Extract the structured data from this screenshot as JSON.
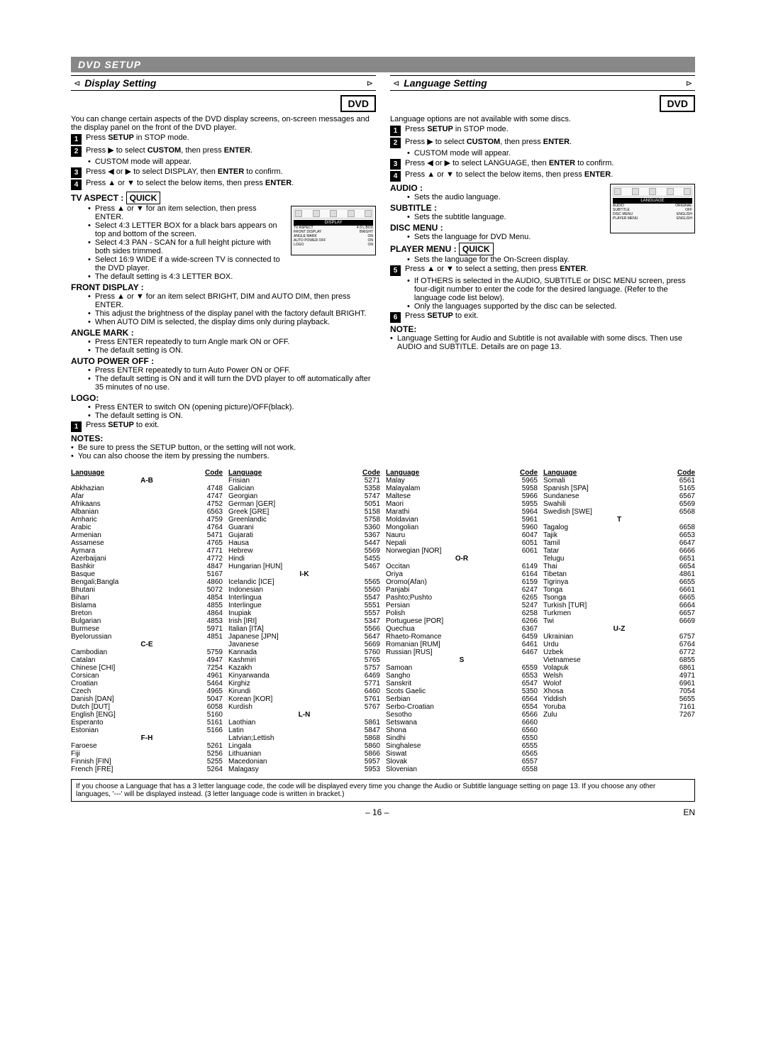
{
  "section_title": "DVD SETUP",
  "display": {
    "title": "Display Setting",
    "badge": "DVD",
    "intro": "You can change certain aspects of the DVD display screens, on-screen messages and the display panel on the front of the DVD player.",
    "s1": "Press ",
    "s1b": "SETUP",
    "s1c": " in STOP mode.",
    "s2a": "Press ",
    "s2b": " to select ",
    "s2c": "CUSTOM",
    "s2d": ", then press ",
    "s2e": "ENTER",
    "s2f": ".",
    "s2_bullet": "CUSTOM mode will appear.",
    "s3a": "Press ",
    "s3b": " or ",
    "s3c": " to select DISPLAY, then ",
    "s3d": "ENTER",
    "s3e": " to confirm.",
    "s4a": "Press ",
    "s4b": " or ",
    "s4c": " to select the below items, then press ",
    "s4d": "ENTER",
    "s4e": ".",
    "tv_aspect_h": "TV ASPECT : ",
    "quick": "QUICK",
    "tva_b1": "Press ▲ or ▼ for an item selection, then press ENTER.",
    "tva_b2": "Select 4:3 LETTER BOX for a black bars appears on top and bottom of the screen.",
    "tva_b3": "Select 4:3 PAN - SCAN for a full height picture with both sides trimmed.",
    "tva_b4": "Select 16:9 WIDE if a wide-screen TV is connected to the DVD player.",
    "tva_b5": "The default setting is 4:3 LETTER BOX.",
    "front_h": "FRONT DISPLAY :",
    "fd_b1": "Press ▲ or ▼ for an item select BRIGHT, DIM and AUTO DIM, then press ENTER.",
    "fd_b2": "This adjust the brightness of the display panel with the factory default BRIGHT.",
    "fd_b3": "When AUTO DIM is selected, the display dims only during playback.",
    "angle_h": "ANGLE MARK :",
    "am_b1": "Press ENTER repeatedly to turn Angle mark ON or OFF.",
    "am_b2": "The default setting is ON.",
    "apo_h": "AUTO POWER OFF :",
    "apo_b1": "Press ENTER repeatedly to turn Auto Power ON or OFF.",
    "apo_b2": "The default setting is ON and it will turn the DVD player to off automatically after 35 minutes of no use.",
    "logo_h": "LOGO:",
    "logo_b1": "Press ENTER to switch ON (opening picture)/OFF(black).",
    "logo_b2": "The default setting is ON.",
    "s_exit_a": "Press ",
    "s_exit_b": "SETUP",
    "s_exit_c": " to exit.",
    "notes_h": "NOTES:",
    "notes_b1": "Be sure to press the SETUP button, or the setting will not work.",
    "notes_b2": "You can also choose the item by pressing the numbers.",
    "diag": {
      "head_label": "DISPLAY",
      "rows": [
        [
          "TV ASPECT",
          "4:3 L.BOX"
        ],
        [
          "FRONT DISPLAY",
          "BRIGHT"
        ],
        [
          "ANGLE MARK",
          "ON"
        ],
        [
          "AUTO POWER OFF",
          "ON"
        ],
        [
          "LOGO",
          "ON"
        ]
      ]
    }
  },
  "language": {
    "title": "Language Setting",
    "badge": "DVD",
    "intro": "Language options are not available with some discs.",
    "s1a": "Press ",
    "s1b": "SETUP",
    "s1c": " in STOP mode.",
    "s2a": "Press ",
    "s2b": " to select ",
    "s2c": "CUSTOM",
    "s2d": ", then press ",
    "s2e": "ENTER",
    "s2f": ".",
    "s2_bullet": "CUSTOM mode will appear.",
    "s3a": "Press ",
    "s3b": " or ",
    "s3c": " to select LANGUAGE, then ",
    "s3d": "ENTER",
    "s3e": " to confirm.",
    "s4a": "Press ",
    "s4b": " or ",
    "s4c": " to select the below items, then press ",
    "s4d": "ENTER",
    "s4e": ".",
    "audio_h": "AUDIO :",
    "audio_b": "Sets the audio language.",
    "sub_h": "SUBTITLE :",
    "sub_b": "Sets the subtitle language.",
    "disc_h": "DISC MENU :",
    "disc_b": "Sets the language for DVD Menu.",
    "player_h": "PLAYER MENU : ",
    "quick": "QUICK",
    "player_b": "Sets the language for the On-Screen display.",
    "s5a": "Press ",
    "s5b": " or ",
    "s5c": " to select a setting, then press ",
    "s5d": "ENTER",
    "s5e": ".",
    "s5_b1": "If OTHERS is selected in the AUDIO, SUBTITLE or DISC MENU screen, press four-digit number to enter the code for the desired language. (Refer to the language code list below).",
    "s5_b2": "Only the languages supported by the disc can be selected.",
    "s6a": "Press ",
    "s6b": "SETUP",
    "s6c": " to exit.",
    "note_h": "NOTE:",
    "note_b": "Language Setting for Audio and Subtitle is not available with some discs. Then use AUDIO and SUBTITLE. Details are on page 13.",
    "diag": {
      "head_label": "LANGUAGE",
      "rows": [
        [
          "AUDIO",
          "ORIGINAL"
        ],
        [
          "SUBTITLE",
          "OFF"
        ],
        [
          "DISC MENU",
          "ENGLISH"
        ],
        [
          "PLAYER MENU",
          "ENGLISH"
        ]
      ]
    }
  },
  "lang_table": {
    "head_lang": "Language",
    "head_code": "Code",
    "cols": [
      {
        "groups": [
          {
            "h": "A-B",
            "rows": [
              [
                "Abkhazian",
                "4748"
              ],
              [
                "Afar",
                "4747"
              ],
              [
                "Afrikaans",
                "4752"
              ],
              [
                "Albanian",
                "6563"
              ],
              [
                "Amharic",
                "4759"
              ],
              [
                "Arabic",
                "4764"
              ],
              [
                "Armenian",
                "5471"
              ],
              [
                "Assamese",
                "4765"
              ],
              [
                "Aymara",
                "4771"
              ],
              [
                "Azerbaijani",
                "4772"
              ],
              [
                "Bashkir",
                "4847"
              ],
              [
                "Basque",
                "5167"
              ],
              [
                "Bengali;Bangla",
                "4860"
              ],
              [
                "Bhutani",
                "5072"
              ],
              [
                "Bihari",
                "4854"
              ],
              [
                "Bislama",
                "4855"
              ],
              [
                "Breton",
                "4864"
              ],
              [
                "Bulgarian",
                "4853"
              ],
              [
                "Burmese",
                "5971"
              ],
              [
                "Byelorussian",
                "4851"
              ]
            ]
          },
          {
            "h": "C-E",
            "rows": [
              [
                "Cambodian",
                "5759"
              ],
              [
                "Catalan",
                "4947"
              ],
              [
                "Chinese [CHI]",
                "7254"
              ],
              [
                "Corsican",
                "4961"
              ],
              [
                "Croatian",
                "5464"
              ],
              [
                "Czech",
                "4965"
              ],
              [
                "Danish [DAN]",
                "5047"
              ],
              [
                "Dutch [DUT]",
                "6058"
              ],
              [
                "English [ENG]",
                "5160"
              ],
              [
                "Esperanto",
                "5161"
              ],
              [
                "Estonian",
                "5166"
              ]
            ]
          },
          {
            "h": "F-H",
            "rows": [
              [
                "Faroese",
                "5261"
              ],
              [
                "Fiji",
                "5256"
              ],
              [
                "Finnish [FIN]",
                "5255"
              ],
              [
                "French [FRE]",
                "5264"
              ]
            ]
          }
        ]
      },
      {
        "groups": [
          {
            "h": "",
            "rows": [
              [
                "Frisian",
                "5271"
              ],
              [
                "Galician",
                "5358"
              ],
              [
                "Georgian",
                "5747"
              ],
              [
                "German [GER]",
                "5051"
              ],
              [
                "Greek [GRE]",
                "5158"
              ],
              [
                "Greenlandic",
                "5758"
              ],
              [
                "Guarani",
                "5360"
              ],
              [
                "Gujarati",
                "5367"
              ],
              [
                "Hausa",
                "5447"
              ],
              [
                "Hebrew",
                "5569"
              ],
              [
                "Hindi",
                "5455"
              ],
              [
                "Hungarian [HUN]",
                "5467"
              ]
            ]
          },
          {
            "h": "I-K",
            "rows": [
              [
                "Icelandic [ICE]",
                "5565"
              ],
              [
                "Indonesian",
                "5560"
              ],
              [
                "Interlingua",
                "5547"
              ],
              [
                "Interlingue",
                "5551"
              ],
              [
                "Inupiak",
                "5557"
              ],
              [
                "Irish [IRI]",
                "5347"
              ],
              [
                "Italian [ITA]",
                "5566"
              ],
              [
                "Japanese [JPN]",
                "5647"
              ],
              [
                "Javanese",
                "5669"
              ],
              [
                "Kannada",
                "5760"
              ],
              [
                "Kashmiri",
                "5765"
              ],
              [
                "Kazakh",
                "5757"
              ],
              [
                "Kinyarwanda",
                "6469"
              ],
              [
                "Kirghiz",
                "5771"
              ],
              [
                "Kirundi",
                "6460"
              ],
              [
                "Korean [KOR]",
                "5761"
              ],
              [
                "Kurdish",
                "5767"
              ]
            ]
          },
          {
            "h": "L-N",
            "rows": [
              [
                "Laothian",
                "5861"
              ],
              [
                "Latin",
                "5847"
              ],
              [
                "Latvian;Lettish",
                "5868"
              ],
              [
                "Lingala",
                "5860"
              ],
              [
                "Lithuanian",
                "5866"
              ],
              [
                "Macedonian",
                "5957"
              ],
              [
                "Malagasy",
                "5953"
              ]
            ]
          }
        ]
      },
      {
        "groups": [
          {
            "h": "",
            "rows": [
              [
                "Malay",
                "5965"
              ],
              [
                "Malayalam",
                "5958"
              ],
              [
                "Maltese",
                "5966"
              ],
              [
                "Maori",
                "5955"
              ],
              [
                "Marathi",
                "5964"
              ],
              [
                "Moldavian",
                "5961"
              ],
              [
                "Mongolian",
                "5960"
              ],
              [
                "Nauru",
                "6047"
              ],
              [
                "Nepali",
                "6051"
              ],
              [
                "Norwegian [NOR]",
                "6061"
              ]
            ]
          },
          {
            "h": "O-R",
            "rows": [
              [
                "Occitan",
                "6149"
              ],
              [
                "Oriya",
                "6164"
              ],
              [
                "Oromo(Afan)",
                "6159"
              ],
              [
                "Panjabi",
                "6247"
              ],
              [
                "Pashto;Pushto",
                "6265"
              ],
              [
                "Persian",
                "5247"
              ],
              [
                "Polish",
                "6258"
              ],
              [
                "Portuguese [POR]",
                "6266"
              ],
              [
                "Quechua",
                "6367"
              ],
              [
                "Rhaeto-Romance",
                "6459"
              ],
              [
                "Romanian [RUM]",
                "6461"
              ],
              [
                "Russian [RUS]",
                "6467"
              ]
            ]
          },
          {
            "h": "S",
            "rows": [
              [
                "Samoan",
                "6559"
              ],
              [
                "Sangho",
                "6553"
              ],
              [
                "Sanskrit",
                "6547"
              ],
              [
                "Scots Gaelic",
                "5350"
              ],
              [
                "Serbian",
                "6564"
              ],
              [
                "Serbo-Croatian",
                "6554"
              ],
              [
                "Sesotho",
                "6566"
              ],
              [
                "Setswana",
                "6660"
              ],
              [
                "Shona",
                "6560"
              ],
              [
                "Sindhi",
                "6550"
              ],
              [
                "Singhalese",
                "6555"
              ],
              [
                "Siswat",
                "6565"
              ],
              [
                "Slovak",
                "6557"
              ],
              [
                "Slovenian",
                "6558"
              ]
            ]
          }
        ]
      },
      {
        "groups": [
          {
            "h": "",
            "rows": [
              [
                "Somali",
                "6561"
              ],
              [
                "Spanish [SPA]",
                "5165"
              ],
              [
                "Sundanese",
                "6567"
              ],
              [
                "Swahili",
                "6569"
              ],
              [
                "Swedish [SWE]",
                "6568"
              ]
            ]
          },
          {
            "h": "T",
            "rows": [
              [
                "Tagalog",
                "6658"
              ],
              [
                "Tajik",
                "6653"
              ],
              [
                "Tamil",
                "6647"
              ],
              [
                "Tatar",
                "6666"
              ],
              [
                "Telugu",
                "6651"
              ],
              [
                "Thai",
                "6654"
              ],
              [
                "Tibetan",
                "4861"
              ],
              [
                "Tigrinya",
                "6655"
              ],
              [
                "Tonga",
                "6661"
              ],
              [
                "Tsonga",
                "6665"
              ],
              [
                "Turkish [TUR]",
                "6664"
              ],
              [
                "Turkmen",
                "6657"
              ],
              [
                "Twi",
                "6669"
              ]
            ]
          },
          {
            "h": "U-Z",
            "rows": [
              [
                "Ukrainian",
                "6757"
              ],
              [
                "Urdu",
                "6764"
              ],
              [
                "Uzbek",
                "6772"
              ],
              [
                "Vietnamese",
                "6855"
              ],
              [
                "Volapuk",
                "6861"
              ],
              [
                "Welsh",
                "4971"
              ],
              [
                "Wolof",
                "6961"
              ],
              [
                "Xhosa",
                "7054"
              ],
              [
                "Yiddish",
                "5655"
              ],
              [
                "Yoruba",
                "7161"
              ],
              [
                "Zulu",
                "7267"
              ]
            ]
          }
        ]
      }
    ]
  },
  "bottom_note": "If you choose a Language that has a 3 letter language code, the code will be displayed every time you change the Audio or Subtitle language setting on page 13. If you choose any other languages, '---' will be displayed instead. (3 letter language code is written in bracket.)",
  "page_num": "– 16 –",
  "page_suffix": "EN"
}
